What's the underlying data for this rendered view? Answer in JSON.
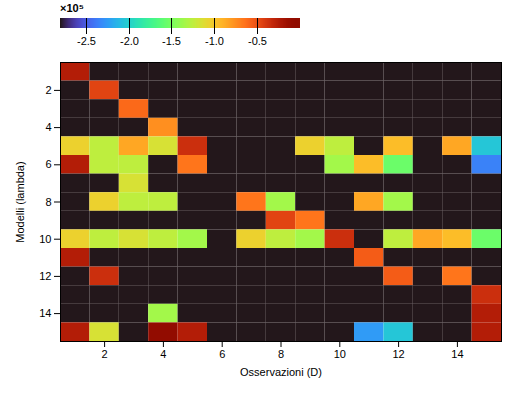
{
  "chart_data": {
    "type": "heatmap",
    "xlabel": "Osservazioni (D)",
    "ylabel": "Modelli (lambda)",
    "x": [
      1,
      2,
      3,
      4,
      5,
      6,
      7,
      8,
      9,
      10,
      11,
      12,
      13,
      14,
      15
    ],
    "y": [
      1,
      2,
      3,
      4,
      5,
      6,
      7,
      8,
      9,
      10,
      11,
      12,
      13,
      14,
      15
    ],
    "xlim": [
      0.5,
      15.5
    ],
    "ylim": [
      15.5,
      0.5
    ],
    "xticks": [
      2,
      4,
      6,
      8,
      10,
      12,
      14
    ],
    "yticks": [
      2,
      4,
      6,
      8,
      10,
      12,
      14
    ],
    "colorbar_range": [
      -2.8,
      0.0
    ],
    "colorbar_ticks": [
      -0.5,
      {
        "value": -1.0,
        "label": "-1.0"
      },
      -1.5,
      {
        "value": -2.0,
        "label": "-2.0"
      },
      -2.5
    ],
    "colorbar_label": "×10⁵",
    "cells": [
      [
        -0.25,
        -2.8,
        -2.8,
        -2.8,
        -2.8,
        -2.8,
        -2.8,
        -2.8,
        -2.8,
        -2.8,
        -2.8,
        -2.8,
        -2.8,
        -2.8,
        -2.8
      ],
      [
        -2.8,
        -0.45,
        -2.8,
        -2.8,
        -2.8,
        -2.8,
        -2.8,
        -2.8,
        -2.8,
        -2.8,
        -2.8,
        -2.8,
        -2.8,
        -2.8,
        -2.8
      ],
      [
        -2.8,
        -2.8,
        -0.6,
        -2.8,
        -2.8,
        -2.8,
        -2.8,
        -2.8,
        -2.8,
        -2.8,
        -2.8,
        -2.8,
        -2.8,
        -2.8,
        -2.8
      ],
      [
        -2.8,
        -2.8,
        -2.8,
        -0.75,
        -2.8,
        -2.8,
        -2.8,
        -2.8,
        -2.8,
        -2.8,
        -2.8,
        -2.8,
        -2.8,
        -2.8,
        -2.8
      ],
      [
        -1.05,
        -1.25,
        -0.85,
        -1.15,
        -0.35,
        -2.8,
        -2.8,
        -2.8,
        -1.05,
        -1.25,
        -2.8,
        -0.95,
        -2.8,
        -0.85,
        -2.05
      ],
      [
        -0.25,
        -1.25,
        -1.25,
        -2.8,
        -0.65,
        -2.8,
        -2.8,
        -2.8,
        -2.8,
        -1.35,
        -0.95,
        -1.55,
        -2.8,
        -2.8,
        -2.35
      ],
      [
        -2.8,
        -2.8,
        -1.15,
        -2.8,
        -2.8,
        -2.8,
        -2.8,
        -2.8,
        -2.8,
        -2.8,
        -2.8,
        -2.8,
        -2.8,
        -2.8,
        -2.8
      ],
      [
        -2.8,
        -1.05,
        -1.25,
        -1.25,
        -2.8,
        -2.8,
        -0.65,
        -1.35,
        -2.8,
        -2.8,
        -0.85,
        -1.35,
        -2.8,
        -2.8,
        -2.8
      ],
      [
        -2.8,
        -2.8,
        -2.8,
        -2.8,
        -2.8,
        -2.8,
        -2.8,
        -0.45,
        -0.65,
        -2.8,
        -2.8,
        -2.8,
        -2.8,
        -2.8,
        -2.8
      ],
      [
        -1.05,
        -1.25,
        -1.15,
        -1.25,
        -1.35,
        -2.8,
        -1.05,
        -1.25,
        -1.35,
        -0.35,
        -2.8,
        -1.25,
        -0.85,
        -0.95,
        -1.55
      ],
      [
        -0.25,
        -2.8,
        -2.8,
        -2.8,
        -2.8,
        -2.8,
        -2.8,
        -2.8,
        -2.8,
        -2.8,
        -0.55,
        -2.8,
        -2.8,
        -2.8,
        -2.8
      ],
      [
        -2.8,
        -0.35,
        -2.8,
        -2.8,
        -2.8,
        -2.8,
        -2.8,
        -2.8,
        -2.8,
        -2.8,
        -2.8,
        -0.55,
        -2.8,
        -0.65,
        -2.8
      ],
      [
        -2.8,
        -2.8,
        -2.8,
        -2.8,
        -2.8,
        -2.8,
        -2.8,
        -2.8,
        -2.8,
        -2.8,
        -2.8,
        -2.8,
        -2.8,
        -2.8,
        -0.35
      ],
      [
        -2.8,
        -2.8,
        -2.8,
        -1.35,
        -2.8,
        -2.8,
        -2.8,
        -2.8,
        -2.8,
        -2.8,
        -2.8,
        -2.8,
        -2.8,
        -2.8,
        -0.25
      ],
      [
        -0.25,
        -1.15,
        -2.8,
        -0.05,
        -0.25,
        -2.8,
        -2.8,
        -2.8,
        -2.8,
        -2.8,
        -2.25,
        -2.05,
        -2.8,
        -2.8,
        -0.25
      ]
    ]
  }
}
